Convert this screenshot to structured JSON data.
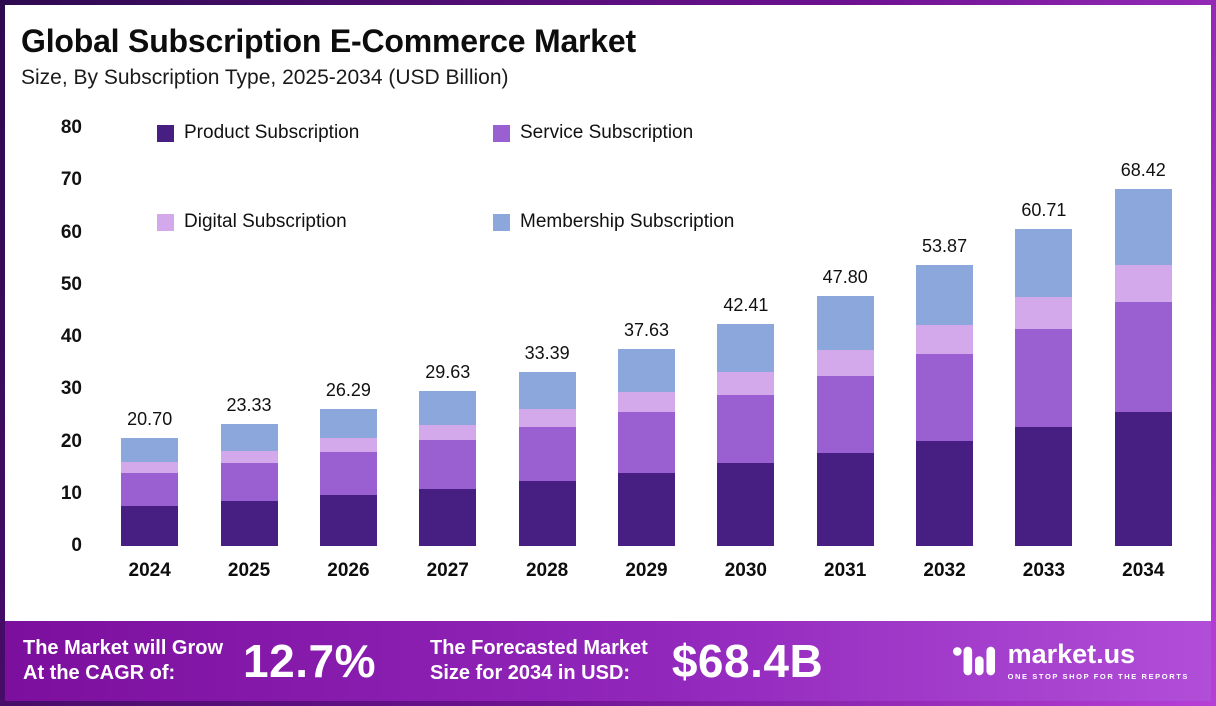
{
  "header": {
    "title": "Global Subscription E-Commerce Market",
    "subtitle": "Size, By Subscription Type, 2025-2034 (USD Billion)"
  },
  "chart_data": {
    "type": "bar",
    "stacked": true,
    "title": "Global Subscription E-Commerce Market Size, By Subscription Type, 2025-2034 (USD Billion)",
    "categories": [
      "2024",
      "2025",
      "2026",
      "2027",
      "2028",
      "2029",
      "2030",
      "2031",
      "2032",
      "2033",
      "2034"
    ],
    "totals": [
      20.7,
      23.33,
      26.29,
      29.63,
      33.39,
      37.63,
      42.41,
      47.8,
      53.87,
      60.71,
      68.42
    ],
    "totals_display": [
      "20.70",
      "23.33",
      "26.29",
      "29.63",
      "33.39",
      "37.63",
      "42.41",
      "47.80",
      "53.87",
      "60.71",
      "68.42"
    ],
    "series": [
      {
        "name": "Product Subscription",
        "color": "#471f82",
        "values": [
          7.6,
          8.7,
          9.8,
          11.0,
          12.4,
          14.0,
          15.8,
          17.8,
          20.1,
          22.7,
          25.6
        ]
      },
      {
        "name": "Service Subscription",
        "color": "#9a5fd0",
        "values": [
          6.4,
          7.2,
          8.15,
          9.2,
          10.35,
          11.65,
          13.1,
          14.8,
          16.65,
          18.75,
          21.1
        ]
      },
      {
        "name": "Digital Subscription",
        "color": "#d4a9ec",
        "values": [
          2.1,
          2.35,
          2.65,
          3.0,
          3.4,
          3.85,
          4.35,
          4.9,
          5.55,
          6.25,
          7.05
        ]
      },
      {
        "name": "Membership Subscription",
        "color": "#8ba7dc",
        "values": [
          4.6,
          5.08,
          5.69,
          6.43,
          7.24,
          8.13,
          9.16,
          10.3,
          11.57,
          13.01,
          14.67
        ]
      }
    ],
    "xlabel": "",
    "ylabel": "",
    "ylim": [
      0,
      80
    ],
    "yticks": [
      0,
      10,
      20,
      30,
      40,
      50,
      60,
      70,
      80
    ],
    "grid": false,
    "legend_position": "top-left"
  },
  "banner": {
    "cagr_label_line1": "The Market will Grow",
    "cagr_label_line2": "At the CAGR of:",
    "cagr_value": "12.7%",
    "forecast_label_line1": "The Forecasted Market",
    "forecast_label_line2": "Size for 2034 in USD:",
    "forecast_value": "$68.4B",
    "brand": "market.us",
    "brand_tagline": "ONE STOP SHOP FOR THE REPORTS"
  },
  "colors": {
    "product_subscription": "#471f82",
    "service_subscription": "#9a5fd0",
    "digital_subscription": "#d4a9ec",
    "membership_subscription": "#8ba7dc",
    "banner_gradient_start": "#7c0f9d",
    "banner_gradient_end": "#b14ed8",
    "frame_gradient_start": "#2e0a50",
    "frame_gradient_end": "#b63fd8",
    "text": "#0d0d0d",
    "banner_text": "#ffffff"
  }
}
